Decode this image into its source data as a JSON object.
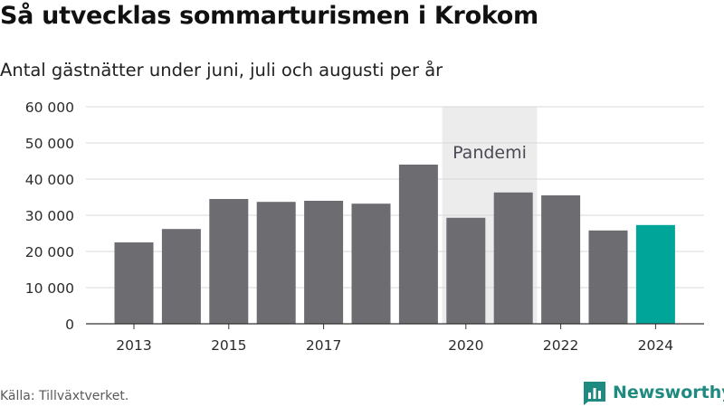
{
  "header": {
    "title": "Så utvecklas sommarturismen i Krokom",
    "subtitle": "Antal gästnätter under juni, juli och augusti per år"
  },
  "footer": {
    "source": "Källa: Tillväxtverket.",
    "brand_name": "Newsworthy",
    "brand_icon": "newsworthy-logo-icon",
    "brand_color": "#1f8a80"
  },
  "chart_data": {
    "type": "bar",
    "categories": [
      "2013",
      "2014",
      "2015",
      "2016",
      "2017",
      "2018",
      "2019",
      "2020",
      "2021",
      "2022",
      "2023",
      "2024"
    ],
    "values": [
      22500,
      26200,
      34500,
      33700,
      34000,
      33200,
      44000,
      29300,
      36300,
      35500,
      25800,
      27300
    ],
    "highlight_category": "2024",
    "bar_color": "#6d6c71",
    "highlight_color": "#00a59a",
    "title": "",
    "xlabel": "",
    "ylabel": "",
    "ylim": [
      0,
      60000
    ],
    "yticks": [
      0,
      10000,
      20000,
      30000,
      40000,
      50000,
      60000
    ],
    "ytick_labels": [
      "0",
      "10 000",
      "20 000",
      "30 000",
      "40 000",
      "50 000",
      "60 000"
    ],
    "xtick_labels": [
      "2013",
      "2015",
      "2017",
      "2020",
      "2022",
      "2024"
    ],
    "grid": true,
    "annotation": {
      "label": "Pandemi",
      "from": "2020",
      "to": "2021",
      "color": "#ececec"
    }
  }
}
